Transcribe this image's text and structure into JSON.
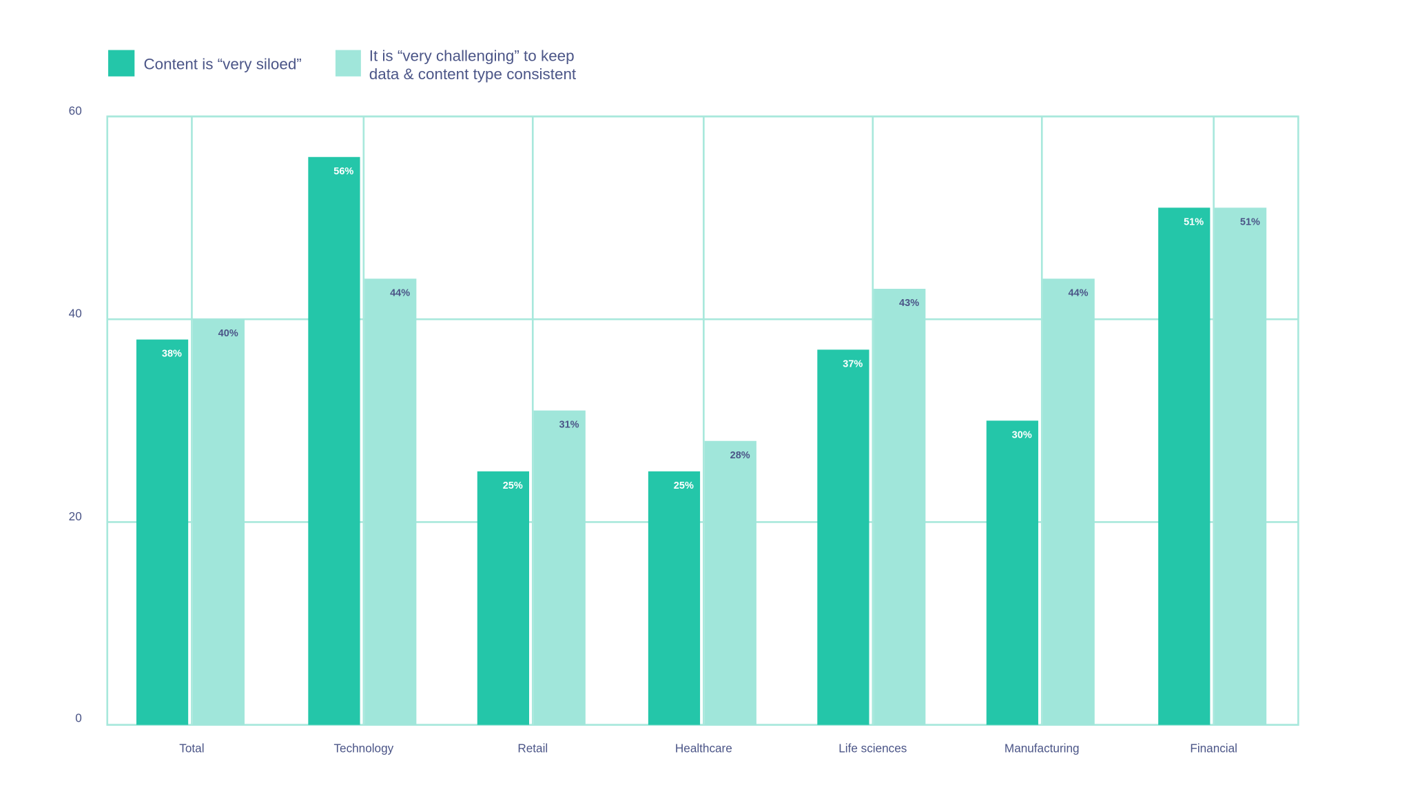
{
  "chart_data": {
    "type": "bar",
    "title": "",
    "xlabel": "",
    "ylabel": "",
    "ylim": [
      0,
      60
    ],
    "yticks": [
      "0",
      "20",
      "40",
      "60"
    ],
    "grid": true,
    "legend_placement": "top-left",
    "categories": [
      "Total",
      "Technology",
      "Retail",
      "Healthcare",
      "Life sciences",
      "Manufacturing",
      "Financial"
    ],
    "series": [
      {
        "name": "Content is “very siloed”",
        "values": [
          38,
          56,
          25,
          25,
          37,
          30,
          51
        ],
        "labels": [
          "38%",
          "56%",
          "25%",
          "25%",
          "37%",
          "30%",
          "51%"
        ],
        "color": "#24c6a9"
      },
      {
        "name_lines": [
          "It is “very challenging” to keep",
          "data & content type consistent"
        ],
        "values": [
          40,
          44,
          31,
          28,
          43,
          44,
          51
        ],
        "labels": [
          "40%",
          "44%",
          "31%",
          "28%",
          "43%",
          "44%",
          "51%"
        ],
        "color": "#a0e6da"
      }
    ],
    "grid_color": "#a8e8dc",
    "text_color": "#4b5587"
  }
}
